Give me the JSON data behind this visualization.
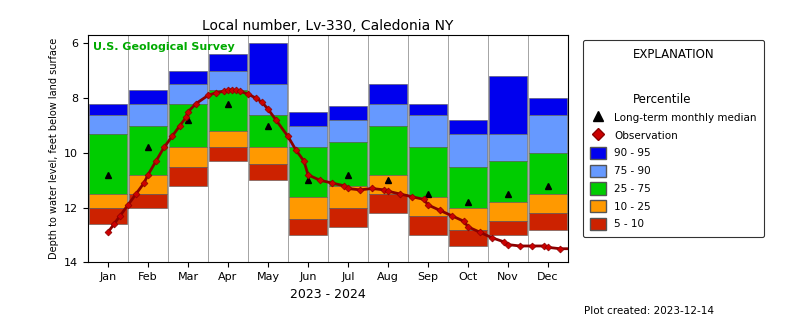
{
  "title": "Local number, Lv-330, Caledonia NY",
  "xlabel": "2023 - 2024",
  "ylabel": "Depth to water level, feet below land surface",
  "usgs_label": "U.S. Geological Survey",
  "plot_created": "Plot created: 2023-12-14",
  "ylim": [
    14.0,
    5.7
  ],
  "months": [
    "Jan",
    "Feb",
    "Mar",
    "Apr",
    "May",
    "Jun",
    "Jul",
    "Aug",
    "Sep",
    "Oct",
    "Nov",
    "Dec"
  ],
  "colors": {
    "p90_95": "#0000EE",
    "p75_90": "#6699FF",
    "p25_75": "#00CC00",
    "p10_25": "#FF9900",
    "p5_10": "#CC2200"
  },
  "percentile_bands": {
    "top95": [
      8.2,
      7.7,
      7.0,
      6.4,
      6.0,
      8.5,
      8.3,
      7.5,
      8.2,
      8.8,
      7.2,
      8.0
    ],
    "top90": [
      8.6,
      8.2,
      7.5,
      7.0,
      7.5,
      9.0,
      8.8,
      8.2,
      8.6,
      9.3,
      9.3,
      8.6
    ],
    "top75": [
      9.3,
      9.0,
      8.2,
      7.7,
      8.6,
      9.8,
      9.6,
      9.0,
      9.8,
      10.5,
      10.3,
      10.0
    ],
    "top25": [
      11.5,
      10.8,
      9.8,
      9.2,
      9.8,
      11.6,
      11.2,
      10.8,
      11.6,
      12.0,
      11.8,
      11.5
    ],
    "top10": [
      12.0,
      11.5,
      10.5,
      9.8,
      10.4,
      12.4,
      12.0,
      11.5,
      12.3,
      12.8,
      12.5,
      12.2
    ],
    "top5": [
      12.6,
      12.0,
      11.2,
      10.3,
      11.0,
      13.0,
      12.7,
      12.2,
      13.0,
      13.4,
      13.0,
      12.8
    ]
  },
  "median": [
    10.8,
    9.8,
    8.8,
    8.2,
    9.0,
    11.0,
    10.8,
    11.0,
    11.5,
    11.8,
    11.5,
    11.2
  ],
  "obs_x": [
    0.0,
    0.15,
    0.3,
    0.5,
    0.7,
    0.9,
    1.0,
    1.2,
    1.4,
    1.6,
    1.8,
    1.95,
    2.0,
    2.2,
    2.5,
    2.7,
    2.9,
    3.0,
    3.1,
    3.2,
    3.3,
    3.5,
    3.7,
    3.85,
    4.0,
    4.2,
    4.5,
    4.7,
    4.9,
    5.0,
    5.3,
    5.6,
    5.9,
    6.0,
    6.3,
    6.6,
    6.9,
    7.0,
    7.3,
    7.6,
    7.9,
    8.0,
    8.3,
    8.6,
    8.9,
    9.0,
    9.3,
    9.6,
    9.9,
    10.0,
    10.3,
    10.6,
    10.9,
    11.0,
    11.3,
    11.6,
    11.9
  ],
  "obs_y": [
    12.9,
    12.6,
    12.3,
    11.9,
    11.5,
    11.1,
    10.8,
    10.3,
    9.8,
    9.4,
    9.0,
    8.7,
    8.5,
    8.2,
    7.9,
    7.8,
    7.75,
    7.7,
    7.7,
    7.72,
    7.75,
    7.85,
    8.0,
    8.15,
    8.4,
    8.8,
    9.4,
    9.9,
    10.3,
    10.8,
    11.0,
    11.1,
    11.2,
    11.3,
    11.35,
    11.3,
    11.35,
    11.4,
    11.5,
    11.6,
    11.7,
    11.9,
    12.1,
    12.3,
    12.5,
    12.7,
    12.9,
    13.1,
    13.25,
    13.35,
    13.4,
    13.4,
    13.4,
    13.45,
    13.5,
    13.5,
    13.55
  ]
}
